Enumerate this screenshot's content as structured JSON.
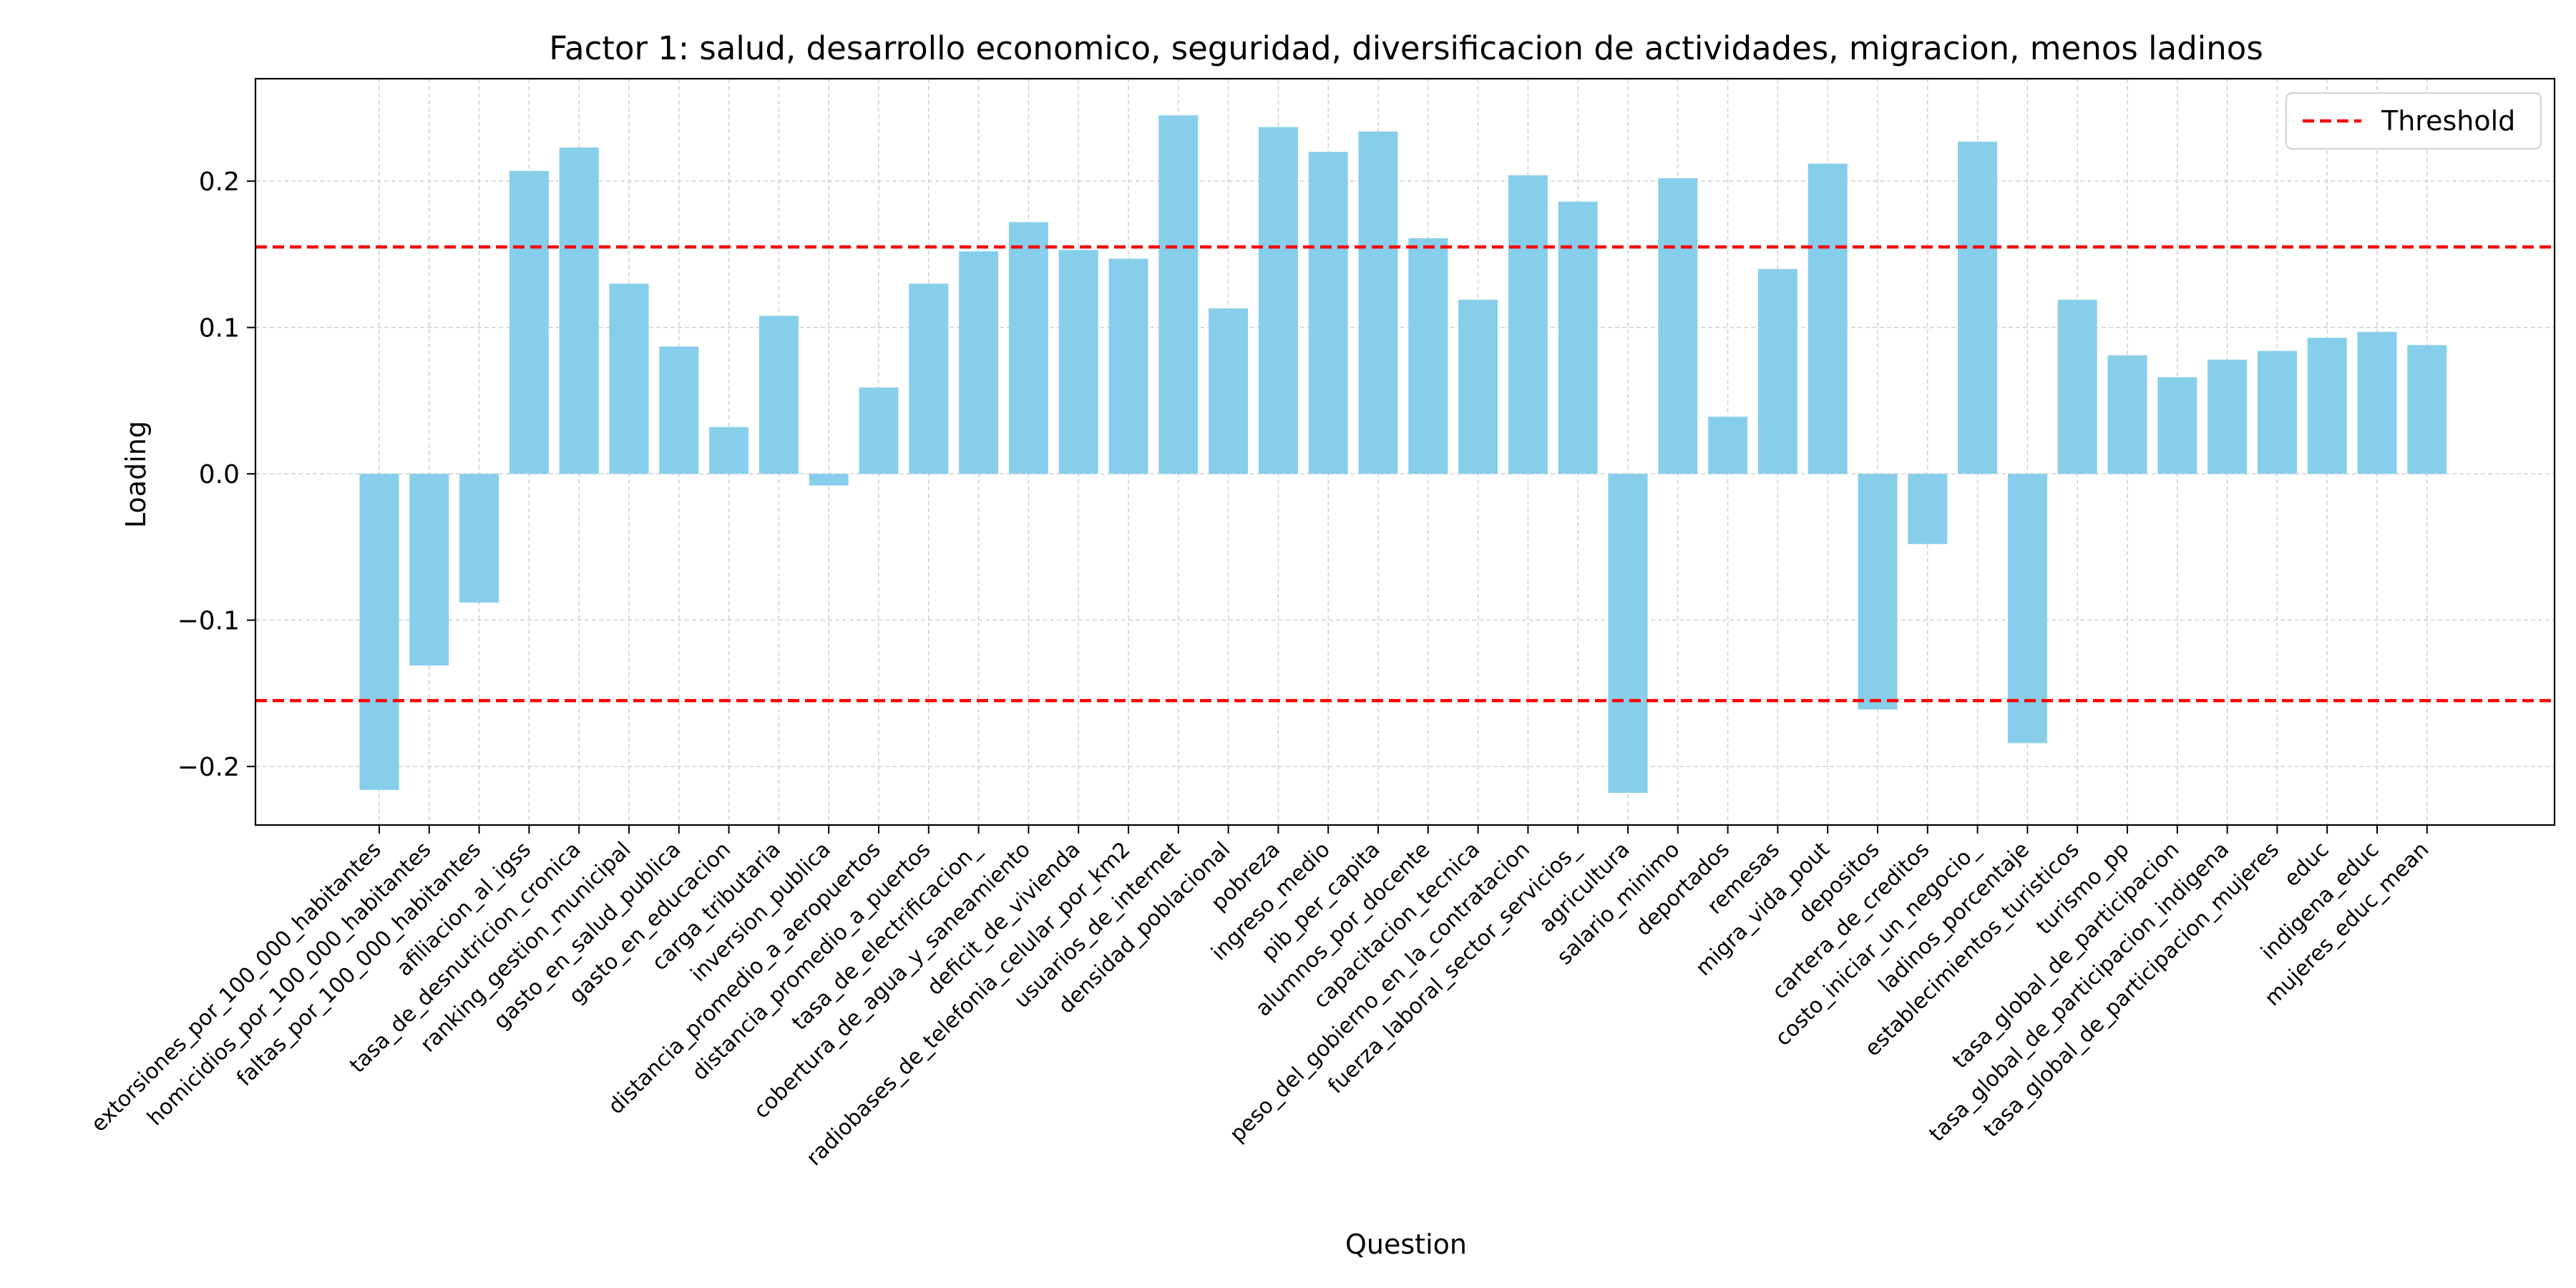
{
  "chart_data": {
    "type": "bar",
    "title": "Factor 1: salud, desarrollo economico, seguridad, diversificacion de actividades, migracion, menos ladinos",
    "xlabel": "Question",
    "ylabel": "Loading",
    "ylim": [
      -0.24,
      0.27
    ],
    "yticks": [
      -0.2,
      -0.1,
      0.0,
      0.1,
      0.2
    ],
    "ytick_labels": [
      "−0.2",
      "−0.1",
      "0.0",
      "0.1",
      "0.2"
    ],
    "grid": true,
    "legend": {
      "placement": "top-right",
      "entries": [
        "Threshold"
      ]
    },
    "threshold": {
      "name": "Threshold",
      "values": [
        0.155,
        -0.155
      ],
      "color": "#ff0000"
    },
    "bar_color": "#87ceeb",
    "categories": [
      "extorsiones_por_100_000_habitantes",
      "homicidios_por_100_000_habitantes",
      "faltas_por_100_000_habitantes",
      "afiliacion_al_igss",
      "tasa_de_desnutricion_cronica",
      "ranking_gestion_municipal",
      "gasto_en_salud_publica",
      "gasto_en_educacion",
      "carga_tributaria",
      "inversion_publica",
      "distancia_promedio_a_aeropuertos",
      "distancia_promedio_a_puertos",
      "tasa_de_electrificacion_",
      "cobertura_de_agua_y_saneamiento",
      "deficit_de_vivienda",
      "radiobases_de_telefonia_celular_por_km2",
      "usuarios_de_internet",
      "densidad_poblacional",
      "pobreza",
      "ingreso_medio",
      "pib_per_capita",
      "alumnos_por_docente",
      "capacitacion_tecnica",
      "peso_del_gobierno_en_la_contratacion",
      "fuerza_laboral_sector_servicios_",
      "agricultura",
      "salario_minimo",
      "deportados",
      "remesas",
      "migra_vida_pout",
      "depositos",
      "cartera_de_creditos",
      "costo_iniciar_un_negocio_",
      "ladinos_porcentaje",
      "establecimientos_turisticos",
      "turismo_pp",
      "tasa_global_de_participacion",
      "tasa_global_de_participacion_indigena",
      "tasa_global_de_participacion_mujeres",
      "educ",
      "indigena_educ",
      "mujeres_educ_mean"
    ],
    "values": [
      -0.216,
      -0.131,
      -0.088,
      0.207,
      0.223,
      0.13,
      0.087,
      0.032,
      0.108,
      -0.008,
      0.059,
      0.13,
      0.152,
      0.172,
      0.153,
      0.147,
      0.245,
      0.113,
      0.237,
      0.22,
      0.234,
      0.161,
      0.119,
      0.204,
      0.186,
      -0.218,
      0.202,
      0.039,
      0.14,
      0.212,
      -0.161,
      -0.048,
      0.227,
      -0.184,
      0.119,
      0.081,
      0.066,
      0.078,
      0.084,
      0.093,
      0.097,
      0.088
    ]
  }
}
